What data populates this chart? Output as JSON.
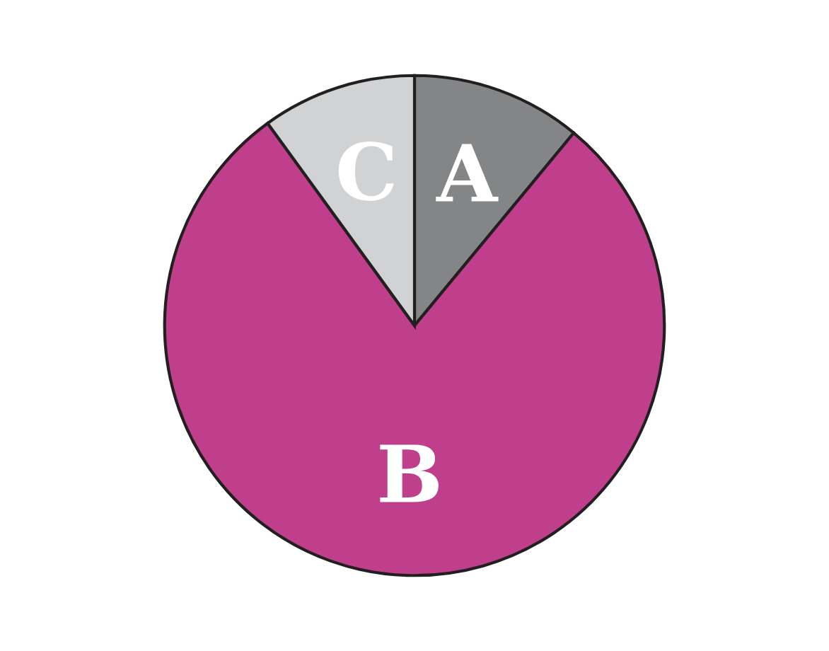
{
  "chart_data": {
    "type": "pie",
    "categories": [
      "A",
      "B",
      "C"
    ],
    "values": [
      11,
      79,
      10
    ],
    "colors": [
      "#848587",
      "#bf3f8c",
      "#d1d2d4"
    ]
  }
}
